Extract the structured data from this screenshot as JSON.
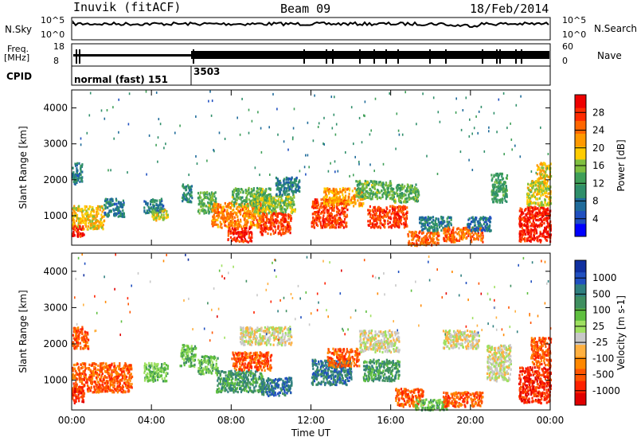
{
  "header": {
    "station": "Inuvik (fitACF)",
    "beam": "Beam 09",
    "date": "18/Feb/2014"
  },
  "top_panels": {
    "nsky_label": "N.Sky",
    "nsky_ticks": [
      "10^5",
      "10^0"
    ],
    "nsearch_label": "N.Search",
    "nsearch_ticks": [
      "10^5",
      "10^0"
    ],
    "freq_label": "Freq.",
    "freq_unit": "[MHz]",
    "freq_ticks": [
      "18",
      "8"
    ],
    "nave_label": "Nave",
    "nave_ticks": [
      "60",
      "0"
    ],
    "cpid_label": "CPID",
    "cpid_segments": [
      {
        "label": "normal (fast) 151",
        "start_hour": 0.0
      },
      {
        "label": "3503",
        "start_hour": 6.0
      }
    ]
  },
  "chart_data": [
    {
      "type": "heatmap",
      "title": "",
      "xlabel": "",
      "ylabel": "Slant Range [km]",
      "xlim": [
        0,
        24
      ],
      "ylim": [
        180,
        4500
      ],
      "x_ticks": [
        0,
        4,
        8,
        12,
        16,
        20,
        24
      ],
      "y_ticks": [
        1000,
        2000,
        3000,
        4000
      ],
      "colorbar": {
        "label": "Power [dB]",
        "range": [
          0,
          32
        ],
        "ticks": [
          4,
          8,
          12,
          16,
          20,
          24,
          28
        ],
        "colors": [
          "#0000ff",
          "#1f4fc0",
          "#1f6b9a",
          "#2f8f6a",
          "#3f9f58",
          "#7fbf3f",
          "#ffcc00",
          "#ff9900",
          "#ff6600",
          "#ff2a00",
          "#ee0000"
        ]
      },
      "value_range": [
        0,
        32
      ],
      "regions": [
        {
          "x": [
            0.0,
            1.6
          ],
          "y": [
            650,
            1300
          ],
          "v": 20
        },
        {
          "x": [
            0.0,
            0.6
          ],
          "y": [
            450,
            750
          ],
          "v": 30
        },
        {
          "x": [
            0.0,
            0.5
          ],
          "y": [
            1900,
            2500
          ],
          "v": 8
        },
        {
          "x": [
            1.6,
            2.6
          ],
          "y": [
            1000,
            1500
          ],
          "v": 8
        },
        {
          "x": [
            3.6,
            4.6
          ],
          "y": [
            1100,
            1500
          ],
          "v": 8
        },
        {
          "x": [
            4.0,
            4.8
          ],
          "y": [
            900,
            1200
          ],
          "v": 18
        },
        {
          "x": [
            5.5,
            6.0
          ],
          "y": [
            1400,
            1900
          ],
          "v": 10
        },
        {
          "x": [
            6.3,
            7.2
          ],
          "y": [
            1100,
            1700
          ],
          "v": 14
        },
        {
          "x": [
            7.0,
            9.5
          ],
          "y": [
            700,
            1400
          ],
          "v": 24
        },
        {
          "x": [
            7.8,
            9.0
          ],
          "y": [
            300,
            700
          ],
          "v": 30
        },
        {
          "x": [
            8.0,
            10.0
          ],
          "y": [
            1300,
            1800
          ],
          "v": 14
        },
        {
          "x": [
            9.0,
            11.2
          ],
          "y": [
            1100,
            1600
          ],
          "v": 16
        },
        {
          "x": [
            9.4,
            11.0
          ],
          "y": [
            500,
            1100
          ],
          "v": 28
        },
        {
          "x": [
            10.2,
            11.4
          ],
          "y": [
            1600,
            2100
          ],
          "v": 8
        },
        {
          "x": [
            12.0,
            13.8
          ],
          "y": [
            700,
            1500
          ],
          "v": 28
        },
        {
          "x": [
            12.6,
            14.6
          ],
          "y": [
            1300,
            1800
          ],
          "v": 22
        },
        {
          "x": [
            14.2,
            16.0
          ],
          "y": [
            1500,
            2000
          ],
          "v": 14
        },
        {
          "x": [
            14.8,
            16.8
          ],
          "y": [
            700,
            1300
          ],
          "v": 28
        },
        {
          "x": [
            16.0,
            17.4
          ],
          "y": [
            1400,
            1900
          ],
          "v": 14
        },
        {
          "x": [
            16.8,
            18.4
          ],
          "y": [
            200,
            600
          ],
          "v": 26
        },
        {
          "x": [
            17.4,
            19.0
          ],
          "y": [
            600,
            1000
          ],
          "v": 8
        },
        {
          "x": [
            18.6,
            20.6
          ],
          "y": [
            300,
            700
          ],
          "v": 26
        },
        {
          "x": [
            19.8,
            21.0
          ],
          "y": [
            600,
            1000
          ],
          "v": 6
        },
        {
          "x": [
            21.0,
            21.8
          ],
          "y": [
            1400,
            2200
          ],
          "v": 12
        },
        {
          "x": [
            22.4,
            24.0
          ],
          "y": [
            300,
            1300
          ],
          "v": 30
        },
        {
          "x": [
            22.8,
            24.0
          ],
          "y": [
            1300,
            2000
          ],
          "v": 18
        },
        {
          "x": [
            23.3,
            24.0
          ],
          "y": [
            2000,
            2500
          ],
          "v": 20
        }
      ]
    },
    {
      "type": "heatmap",
      "title": "",
      "xlabel": "Time UT",
      "ylabel": "Slant Range [km]",
      "xlim": [
        0,
        24
      ],
      "ylim": [
        180,
        4500
      ],
      "x_ticks": [
        0,
        4,
        8,
        12,
        16,
        20,
        24
      ],
      "x_tick_labels": [
        "00:00",
        "04:00",
        "08:00",
        "12:00",
        "16:00",
        "20:00",
        "00:00"
      ],
      "y_ticks": [
        1000,
        2000,
        3000,
        4000
      ],
      "colorbar": {
        "label": "Velocity [m s-1]",
        "tick_labels": [
          "1000",
          "500",
          "100",
          "25",
          "-25",
          "-100",
          "-500",
          "-1000"
        ],
        "colors": [
          "#1030a0",
          "#2050c0",
          "#2f7f7f",
          "#3f8f60",
          "#5fbf3f",
          "#9fe060",
          "#c8c8c8",
          "#ffb040",
          "#ff8800",
          "#ff5500",
          "#ff2200",
          "#e00000"
        ]
      },
      "regions": [
        {
          "x": [
            0.0,
            3.0
          ],
          "y": [
            700,
            1500
          ],
          "v": 9
        },
        {
          "x": [
            0.0,
            0.8
          ],
          "y": [
            1900,
            2500
          ],
          "v": 9
        },
        {
          "x": [
            0.0,
            0.6
          ],
          "y": [
            400,
            800
          ],
          "v": 10
        },
        {
          "x": [
            3.6,
            4.8
          ],
          "y": [
            1000,
            1500
          ],
          "v": 4
        },
        {
          "x": [
            5.4,
            6.2
          ],
          "y": [
            1400,
            2000
          ],
          "v": 4
        },
        {
          "x": [
            6.3,
            7.3
          ],
          "y": [
            1200,
            1700
          ],
          "v": 4
        },
        {
          "x": [
            7.2,
            9.6
          ],
          "y": [
            700,
            1300
          ],
          "v": 3
        },
        {
          "x": [
            8.0,
            10.0
          ],
          "y": [
            1300,
            1800
          ],
          "v": 9
        },
        {
          "x": [
            9.5,
            11.0
          ],
          "y": [
            600,
            1100
          ],
          "v": 2
        },
        {
          "x": [
            8.4,
            11.0
          ],
          "y": [
            2000,
            2500
          ],
          "v": 6
        },
        {
          "x": [
            12.0,
            14.0
          ],
          "y": [
            900,
            1600
          ],
          "v": 2
        },
        {
          "x": [
            12.8,
            14.4
          ],
          "y": [
            1400,
            1900
          ],
          "v": 9
        },
        {
          "x": [
            14.6,
            16.4
          ],
          "y": [
            1000,
            1600
          ],
          "v": 3
        },
        {
          "x": [
            14.4,
            16.4
          ],
          "y": [
            1800,
            2400
          ],
          "v": 6
        },
        {
          "x": [
            16.2,
            17.6
          ],
          "y": [
            300,
            800
          ],
          "v": 9
        },
        {
          "x": [
            17.2,
            18.8
          ],
          "y": [
            200,
            500
          ],
          "v": 4
        },
        {
          "x": [
            18.6,
            20.4
          ],
          "y": [
            1900,
            2400
          ],
          "v": 6
        },
        {
          "x": [
            18.6,
            20.6
          ],
          "y": [
            300,
            700
          ],
          "v": 9
        },
        {
          "x": [
            20.8,
            22.0
          ],
          "y": [
            1000,
            2000
          ],
          "v": 6
        },
        {
          "x": [
            22.4,
            24.0
          ],
          "y": [
            400,
            1400
          ],
          "v": 10
        },
        {
          "x": [
            23.0,
            24.0
          ],
          "y": [
            1400,
            2200
          ],
          "v": 9
        }
      ]
    }
  ]
}
